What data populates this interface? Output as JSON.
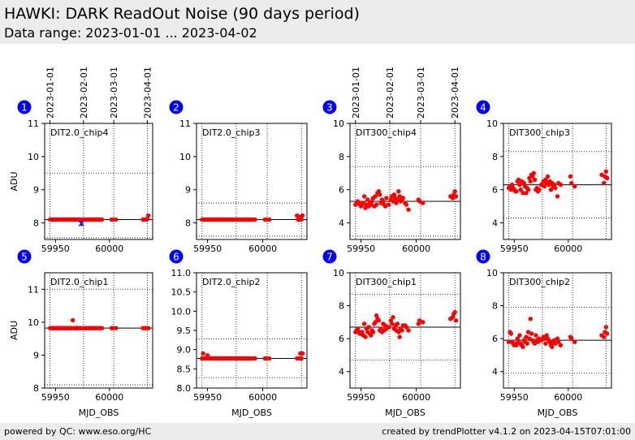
{
  "header": {
    "title": "HAWKI: DARK ReadOut Noise (90 days period)",
    "subtitle": "Data range: 2023-01-01 ... 2023-04-02"
  },
  "footer": {
    "left": "powered by QC: www.eso.org/HC",
    "right": "created by trendPlotter v4.1.2 on 2023-04-15T07:01:00"
  },
  "colors": {
    "points": "#ff0000",
    "marker": "#0000ff",
    "badge": "#0000ff",
    "badge_text": "#ffffff"
  },
  "top_date_ticks": {
    "mjd": [
      59945,
      59976,
      60004,
      60035
    ],
    "labels": [
      "2023-01-01",
      "2023-02-01",
      "2023-03-01",
      "2023-04-01"
    ]
  },
  "chart_data": [
    {
      "type": "scatter",
      "panel_number": "1",
      "label": "DIT2.0_chip4",
      "xlabel": "",
      "ylabel": "ADU",
      "xlim": [
        59940,
        60040
      ],
      "ylim": [
        7.5,
        11
      ],
      "yticks": [
        8,
        9,
        10,
        11
      ],
      "ytick_labels": [
        "8",
        "9",
        "10",
        "11"
      ],
      "xticks": [
        59950,
        60000
      ],
      "xtick_labels": [
        "59950",
        "60000"
      ],
      "hlines": [
        {
          "y": 8.1,
          "style": "solid"
        },
        {
          "y": 9.5,
          "style": "dotted"
        },
        {
          "y": 7.55,
          "style": "dotted"
        }
      ],
      "x": [
        59945,
        59946,
        59947,
        59948,
        59949,
        59950,
        59951,
        59952,
        59953,
        59954,
        59955,
        59956,
        59957,
        59958,
        59959,
        59960,
        59961,
        59962,
        59963,
        59964,
        59965,
        59966,
        59967,
        59968,
        59969,
        59970,
        59971,
        59972,
        59973,
        59975,
        59977,
        59978,
        59979,
        59980,
        59981,
        59982,
        59983,
        59984,
        59985,
        59986,
        59987,
        59988,
        59990,
        59991,
        59993,
        60002,
        60003,
        60006,
        60031,
        60033,
        60034,
        60035,
        60036
      ],
      "y": [
        8.1,
        8.1,
        8.1,
        8.1,
        8.1,
        8.1,
        8.1,
        8.1,
        8.1,
        8.1,
        8.1,
        8.1,
        8.1,
        8.1,
        8.1,
        8.1,
        8.1,
        8.1,
        8.1,
        8.1,
        8.1,
        8.1,
        8.1,
        8.1,
        8.1,
        8.1,
        8.1,
        8.1,
        8.1,
        8.1,
        8.1,
        8.1,
        8.1,
        8.1,
        8.1,
        8.1,
        8.1,
        8.1,
        8.1,
        8.1,
        8.1,
        8.1,
        8.1,
        8.1,
        8.1,
        8.1,
        8.1,
        8.1,
        8.1,
        8.1,
        8.1,
        8.12,
        8.22
      ],
      "marker_points": [
        {
          "x": 59974,
          "y": 7.98
        }
      ]
    },
    {
      "type": "scatter",
      "panel_number": "2",
      "label": "DIT2.0_chip3",
      "xlabel": "",
      "ylabel": "",
      "xlim": [
        59940,
        60040
      ],
      "ylim": [
        7.5,
        11
      ],
      "yticks": [
        8,
        9,
        10,
        11
      ],
      "ytick_labels": [
        "8",
        "9",
        "10",
        "11"
      ],
      "xticks": [
        59950,
        60000
      ],
      "xtick_labels": [
        "59950",
        "60000"
      ],
      "hlines": [
        {
          "y": 8.1,
          "style": "solid"
        },
        {
          "y": 8.6,
          "style": "dotted"
        },
        {
          "y": 7.6,
          "style": "dotted"
        }
      ],
      "x": [
        59945,
        59946,
        59947,
        59948,
        59949,
        59950,
        59951,
        59952,
        59953,
        59954,
        59955,
        59956,
        59957,
        59958,
        59959,
        59960,
        59961,
        59962,
        59963,
        59964,
        59965,
        59966,
        59967,
        59968,
        59969,
        59970,
        59971,
        59972,
        59973,
        59975,
        59977,
        59978,
        59979,
        59980,
        59981,
        59982,
        59983,
        59984,
        59985,
        59986,
        59987,
        59988,
        59990,
        59991,
        59993,
        60002,
        60003,
        60006,
        60031,
        60032,
        60033,
        60034,
        60035,
        60036
      ],
      "y": [
        8.1,
        8.1,
        8.1,
        8.1,
        8.1,
        8.1,
        8.1,
        8.1,
        8.1,
        8.1,
        8.1,
        8.1,
        8.1,
        8.1,
        8.1,
        8.1,
        8.1,
        8.1,
        8.1,
        8.1,
        8.1,
        8.1,
        8.1,
        8.1,
        8.1,
        8.1,
        8.1,
        8.1,
        8.1,
        8.1,
        8.1,
        8.1,
        8.1,
        8.1,
        8.1,
        8.1,
        8.1,
        8.1,
        8.1,
        8.1,
        8.1,
        8.1,
        8.1,
        8.1,
        8.1,
        8.1,
        8.1,
        8.1,
        8.22,
        8.1,
        8.1,
        8.18,
        8.1,
        8.22
      ]
    },
    {
      "type": "scatter",
      "panel_number": "3",
      "label": "DIT300_chip4",
      "xlabel": "",
      "ylabel": "",
      "xlim": [
        59940,
        60040
      ],
      "ylim": [
        3,
        10
      ],
      "yticks": [
        4,
        6,
        8,
        10
      ],
      "ytick_labels": [
        "4",
        "6",
        "8",
        "10"
      ],
      "xticks": [
        59950,
        60000
      ],
      "xtick_labels": [
        "59950",
        "60000"
      ],
      "hlines": [
        {
          "y": 5.3,
          "style": "solid"
        },
        {
          "y": 7.4,
          "style": "dotted"
        },
        {
          "y": 3.2,
          "style": "dotted"
        }
      ],
      "x": [
        59945,
        59946,
        59947,
        59948,
        59949,
        59950,
        59951,
        59952,
        59953,
        59954,
        59955,
        59956,
        59957,
        59958,
        59959,
        59960,
        59961,
        59962,
        59963,
        59964,
        59965,
        59966,
        59967,
        59968,
        59969,
        59970,
        59971,
        59972,
        59973,
        59975,
        59977,
        59978,
        59979,
        59980,
        59981,
        59982,
        59983,
        59984,
        59985,
        59986,
        59987,
        59988,
        59990,
        59991,
        59993,
        60002,
        60003,
        60006,
        60031,
        60033,
        60034,
        60035,
        60036
      ],
      "y": [
        5.1,
        5.2,
        5.3,
        5.2,
        5.1,
        5.0,
        5.1,
        5.2,
        5.6,
        4.9,
        5.1,
        5.4,
        5.0,
        5.2,
        5.1,
        5.3,
        5.5,
        5.0,
        5.6,
        5.1,
        5.8,
        5.9,
        5.7,
        5.2,
        5.4,
        5.3,
        5.1,
        5.0,
        5.5,
        5.1,
        5.4,
        5.6,
        5.3,
        5.7,
        5.5,
        5.2,
        5.4,
        5.9,
        5.6,
        5.3,
        5.4,
        5.5,
        5.2,
        5.1,
        4.8,
        5.4,
        5.3,
        5.2,
        5.6,
        5.5,
        5.7,
        5.9,
        5.6
      ]
    },
    {
      "type": "scatter",
      "panel_number": "4",
      "label": "DIT300_chip3",
      "xlabel": "",
      "ylabel": "",
      "xlim": [
        59940,
        60040
      ],
      "ylim": [
        3,
        10
      ],
      "yticks": [
        4,
        6,
        8,
        10
      ],
      "ytick_labels": [
        "4",
        "6",
        "8",
        "10"
      ],
      "xticks": [
        59950,
        60000
      ],
      "xtick_labels": [
        "59950",
        "60000"
      ],
      "hlines": [
        {
          "y": 6.3,
          "style": "solid"
        },
        {
          "y": 8.3,
          "style": "dotted"
        },
        {
          "y": 4.3,
          "style": "dotted"
        }
      ],
      "x": [
        59945,
        59946,
        59947,
        59948,
        59949,
        59950,
        59951,
        59952,
        59953,
        59954,
        59955,
        59956,
        59957,
        59958,
        59959,
        59960,
        59961,
        59962,
        59963,
        59964,
        59965,
        59966,
        59967,
        59968,
        59969,
        59970,
        59971,
        59972,
        59973,
        59975,
        59977,
        59978,
        59979,
        59980,
        59981,
        59982,
        59983,
        59984,
        59985,
        59986,
        59987,
        59988,
        59990,
        59991,
        59993,
        60002,
        60003,
        60006,
        60031,
        60033,
        60034,
        60035,
        60036
      ],
      "y": [
        6.1,
        6.2,
        6.0,
        6.3,
        6.1,
        6.0,
        5.9,
        5.9,
        6.5,
        6.6,
        6.3,
        6.0,
        6.5,
        5.8,
        6.4,
        6.2,
        5.8,
        6.1,
        6.0,
        6.7,
        6.5,
        6.9,
        6.8,
        7.0,
        6.6,
        6.0,
        6.1,
        5.9,
        6.0,
        6.3,
        6.5,
        6.2,
        6.6,
        6.4,
        6.8,
        6.3,
        6.5,
        6.0,
        6.4,
        6.2,
        6.3,
        6.1,
        5.6,
        6.4,
        6.3,
        6.8,
        6.4,
        6.2,
        6.9,
        6.4,
        6.8,
        7.1,
        6.7
      ]
    },
    {
      "type": "scatter",
      "panel_number": "5",
      "label": "DIT2.0_chip1",
      "xlabel": "MJD_OBS",
      "ylabel": "ADU",
      "xlim": [
        59940,
        60040
      ],
      "ylim": [
        8,
        11.5
      ],
      "yticks": [
        8,
        9,
        10,
        11
      ],
      "ytick_labels": [
        "8",
        "9",
        "10",
        "11"
      ],
      "xticks": [
        59950,
        60000
      ],
      "xtick_labels": [
        "59950",
        "60000"
      ],
      "hlines": [
        {
          "y": 9.82,
          "style": "solid"
        },
        {
          "y": 11.0,
          "style": "dotted"
        },
        {
          "y": 8.1,
          "style": "dotted"
        }
      ],
      "x": [
        59945,
        59946,
        59947,
        59948,
        59949,
        59950,
        59951,
        59952,
        59953,
        59954,
        59955,
        59956,
        59957,
        59958,
        59959,
        59960,
        59961,
        59962,
        59963,
        59964,
        59965,
        59966,
        59967,
        59968,
        59969,
        59970,
        59971,
        59972,
        59973,
        59975,
        59977,
        59978,
        59979,
        59980,
        59981,
        59982,
        59983,
        59984,
        59985,
        59986,
        59987,
        59988,
        59990,
        59991,
        59993,
        60002,
        60003,
        60006,
        60031,
        60033,
        60034,
        60035,
        60036
      ],
      "y": [
        9.82,
        9.82,
        9.82,
        9.82,
        9.82,
        9.82,
        9.82,
        9.82,
        9.82,
        9.82,
        9.82,
        9.82,
        9.82,
        9.82,
        9.82,
        9.82,
        9.82,
        9.82,
        9.82,
        9.82,
        9.82,
        10.06,
        9.82,
        9.82,
        9.82,
        9.82,
        9.82,
        9.82,
        9.82,
        9.82,
        9.82,
        9.82,
        9.82,
        9.82,
        9.82,
        9.82,
        9.82,
        9.82,
        9.82,
        9.82,
        9.82,
        9.82,
        9.82,
        9.82,
        9.82,
        9.82,
        9.82,
        9.82,
        9.82,
        9.82,
        9.82,
        9.82,
        9.82
      ]
    },
    {
      "type": "scatter",
      "panel_number": "6",
      "label": "DIT2.0_chip2",
      "xlabel": "MJD_OBS",
      "ylabel": "",
      "xlim": [
        59940,
        60040
      ],
      "ylim": [
        8.0,
        11.0
      ],
      "yticks": [
        8.0,
        8.5,
        9.0,
        9.5,
        10.0,
        10.5,
        11.0
      ],
      "ytick_labels": [
        "8.0",
        "8.5",
        "9.0",
        "9.5",
        "10.0",
        "10.5",
        "11.0"
      ],
      "xticks": [
        59950,
        60000
      ],
      "xtick_labels": [
        "59950",
        "60000"
      ],
      "hlines": [
        {
          "y": 8.77,
          "style": "solid"
        },
        {
          "y": 9.28,
          "style": "dotted"
        },
        {
          "y": 8.27,
          "style": "dotted"
        }
      ],
      "x": [
        59945,
        59946,
        59947,
        59948,
        59949,
        59950,
        59951,
        59952,
        59953,
        59954,
        59955,
        59956,
        59957,
        59958,
        59959,
        59960,
        59961,
        59962,
        59963,
        59964,
        59965,
        59966,
        59967,
        59968,
        59969,
        59970,
        59971,
        59972,
        59973,
        59975,
        59977,
        59978,
        59979,
        59980,
        59981,
        59982,
        59983,
        59984,
        59985,
        59986,
        59987,
        59988,
        59990,
        59991,
        59993,
        60002,
        60003,
        60006,
        60031,
        60033,
        60034,
        60035,
        60036
      ],
      "y": [
        8.77,
        8.9,
        8.77,
        8.77,
        8.77,
        8.85,
        8.77,
        8.77,
        8.77,
        8.77,
        8.77,
        8.77,
        8.77,
        8.77,
        8.77,
        8.77,
        8.77,
        8.77,
        8.77,
        8.77,
        8.77,
        8.77,
        8.77,
        8.77,
        8.77,
        8.77,
        8.77,
        8.77,
        8.77,
        8.77,
        8.77,
        8.77,
        8.77,
        8.77,
        8.77,
        8.77,
        8.77,
        8.77,
        8.77,
        8.77,
        8.77,
        8.77,
        8.77,
        8.77,
        8.77,
        8.77,
        8.77,
        8.77,
        8.77,
        8.77,
        8.9,
        8.77,
        8.9
      ]
    },
    {
      "type": "scatter",
      "panel_number": "7",
      "label": "DIT300_chip1",
      "xlabel": "MJD_OBS",
      "ylabel": "",
      "xlim": [
        59940,
        60040
      ],
      "ylim": [
        3,
        10
      ],
      "yticks": [
        4,
        6,
        8,
        10
      ],
      "ytick_labels": [
        "4",
        "6",
        "8",
        "10"
      ],
      "xticks": [
        59950,
        60000
      ],
      "xtick_labels": [
        "59950",
        "60000"
      ],
      "hlines": [
        {
          "y": 6.7,
          "style": "solid"
        },
        {
          "y": 8.7,
          "style": "dotted"
        },
        {
          "y": 4.7,
          "style": "dotted"
        }
      ],
      "x": [
        59945,
        59946,
        59947,
        59948,
        59949,
        59950,
        59951,
        59952,
        59953,
        59954,
        59955,
        59956,
        59957,
        59958,
        59959,
        59960,
        59961,
        59962,
        59963,
        59964,
        59965,
        59966,
        59967,
        59968,
        59969,
        59970,
        59971,
        59972,
        59973,
        59975,
        59977,
        59978,
        59979,
        59980,
        59981,
        59982,
        59983,
        59984,
        59985,
        59986,
        59987,
        59988,
        59990,
        59991,
        59993,
        60002,
        60003,
        60006,
        60031,
        60033,
        60034,
        60035,
        60036
      ],
      "y": [
        6.4,
        6.5,
        6.6,
        6.4,
        6.3,
        6.3,
        6.4,
        6.2,
        6.9,
        6.1,
        6.6,
        6.4,
        6.7,
        6.3,
        6.2,
        6.5,
        6.4,
        6.9,
        7.0,
        7.4,
        7.2,
        7.1,
        6.5,
        6.6,
        6.4,
        6.9,
        6.5,
        6.8,
        6.6,
        6.7,
        7.1,
        6.9,
        7.3,
        6.6,
        6.8,
        6.5,
        6.9,
        6.4,
        6.1,
        6.6,
        6.5,
        6.8,
        6.8,
        6.7,
        6.5,
        6.9,
        7.1,
        7.0,
        7.2,
        7.3,
        7.5,
        7.6,
        7.1
      ]
    },
    {
      "type": "scatter",
      "panel_number": "8",
      "label": "DIT300_chip2",
      "xlabel": "MJD_OBS",
      "ylabel": "",
      "xlim": [
        59940,
        60040
      ],
      "ylim": [
        3,
        10
      ],
      "yticks": [
        4,
        6,
        8,
        10
      ],
      "ytick_labels": [
        "4",
        "6",
        "8",
        "10"
      ],
      "xticks": [
        59950,
        60000
      ],
      "xtick_labels": [
        "59950",
        "60000"
      ],
      "hlines": [
        {
          "y": 5.9,
          "style": "solid"
        },
        {
          "y": 7.9,
          "style": "dotted"
        },
        {
          "y": 3.9,
          "style": "dotted"
        }
      ],
      "x": [
        59945,
        59946,
        59947,
        59948,
        59949,
        59950,
        59951,
        59952,
        59953,
        59954,
        59955,
        59956,
        59957,
        59958,
        59959,
        59960,
        59961,
        59962,
        59963,
        59964,
        59965,
        59966,
        59967,
        59968,
        59969,
        59970,
        59971,
        59972,
        59973,
        59975,
        59977,
        59978,
        59979,
        59980,
        59981,
        59982,
        59983,
        59984,
        59985,
        59986,
        59987,
        59988,
        59990,
        59991,
        59993,
        60002,
        60003,
        60006,
        60031,
        60033,
        60034,
        60035,
        60036
      ],
      "y": [
        5.8,
        6.4,
        6.3,
        5.8,
        5.7,
        5.6,
        5.7,
        5.6,
        6.0,
        5.8,
        6.2,
        5.7,
        5.6,
        5.5,
        5.9,
        5.8,
        6.1,
        5.7,
        6.4,
        6.0,
        7.2,
        6.3,
        5.9,
        5.8,
        5.7,
        6.2,
        5.9,
        5.8,
        6.0,
        5.9,
        6.1,
        6.0,
        5.7,
        6.2,
        6.0,
        5.9,
        5.8,
        5.6,
        5.5,
        5.8,
        5.9,
        5.7,
        6.0,
        5.8,
        5.6,
        6.1,
        6.0,
        5.8,
        6.2,
        6.1,
        6.4,
        6.7,
        6.3
      ]
    }
  ]
}
